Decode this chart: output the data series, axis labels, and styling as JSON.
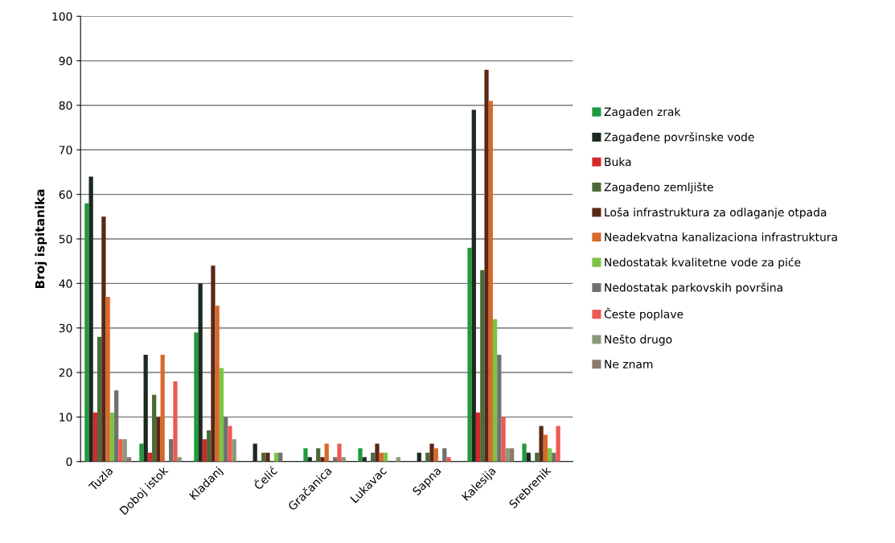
{
  "chart_data": {
    "type": "bar",
    "ylabel": "Broj ispitanika",
    "categories": [
      "Tuzla",
      "Doboj istok",
      "Kladanj",
      "Čelić",
      "Gračanica",
      "Lukavac",
      "Sapna",
      "Kalesija",
      "Srebrenik"
    ],
    "series": [
      {
        "name": "Zagađen zrak",
        "color": "#1f9a3c",
        "values": [
          58,
          4,
          29,
          0,
          3,
          3,
          0,
          48,
          4
        ]
      },
      {
        "name": "Zagađene površinske vode",
        "color": "#1c2a1e",
        "values": [
          64,
          24,
          40,
          4,
          1,
          1,
          2,
          79,
          2
        ]
      },
      {
        "name": "Buka",
        "color": "#d42a2a",
        "values": [
          11,
          2,
          5,
          0,
          0,
          0,
          0,
          11,
          0
        ]
      },
      {
        "name": "Zagađeno zemljište",
        "color": "#4c6a38",
        "values": [
          28,
          15,
          7,
          2,
          3,
          2,
          2,
          43,
          2
        ]
      },
      {
        "name": "Loša infrastruktura za odlaganje otpada",
        "color": "#5a2716",
        "values": [
          55,
          10,
          44,
          2,
          1,
          4,
          4,
          88,
          8
        ]
      },
      {
        "name": "Neadekvatna kanalizaciona infrastruktura",
        "color": "#d8692a",
        "values": [
          37,
          24,
          35,
          0,
          4,
          2,
          3,
          81,
          6
        ]
      },
      {
        "name": "Nedostatak kvalitetne vode za piće",
        "color": "#7cc443",
        "values": [
          11,
          0,
          21,
          2,
          0,
          2,
          0,
          32,
          3
        ]
      },
      {
        "name": "Nedostatak parkovskih površina",
        "color": "#707070",
        "values": [
          16,
          5,
          10,
          2,
          1,
          0,
          3,
          24,
          2
        ]
      },
      {
        "name": "Česte poplave",
        "color": "#ec5a52",
        "values": [
          5,
          18,
          8,
          0,
          4,
          0,
          1,
          10,
          8
        ]
      },
      {
        "name": "Nešto drugo",
        "color": "#8a9a78",
        "values": [
          5,
          1,
          5,
          0,
          1,
          1,
          0,
          3,
          0
        ]
      },
      {
        "name": "Ne znam",
        "color": "#8c7a6c",
        "values": [
          1,
          0,
          0,
          0,
          0,
          0,
          0,
          3,
          0
        ]
      }
    ],
    "ylim": [
      0,
      100
    ],
    "yticks": [
      0,
      10,
      20,
      30,
      40,
      50,
      60,
      70,
      80,
      90,
      100
    ],
    "grid": "y",
    "legend": "right"
  }
}
